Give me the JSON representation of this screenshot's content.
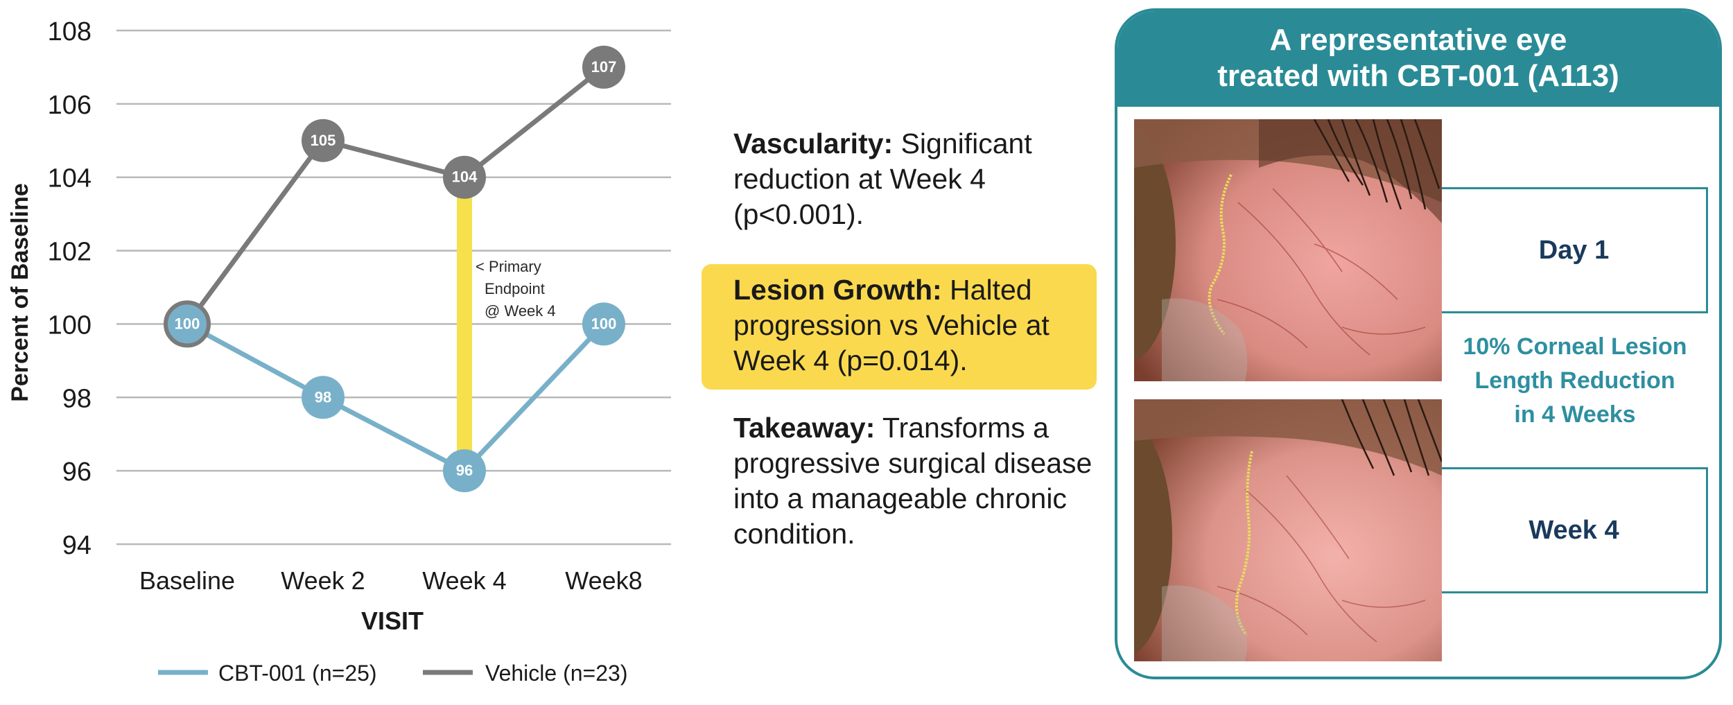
{
  "chart_data": {
    "type": "line",
    "ylabel": "Percent of Baseline",
    "xlabel": "VISIT",
    "categories": [
      "Baseline",
      "Week 2",
      "Week 4",
      "Week8"
    ],
    "ylim": [
      94,
      108
    ],
    "yticks": [
      "94",
      "96",
      "98",
      "100",
      "102",
      "104",
      "106",
      "108"
    ],
    "grid": true,
    "legend_position": "bottom",
    "series": [
      {
        "name": "CBT-001 (n=25)",
        "values": [
          100,
          98,
          96,
          100
        ],
        "labels": [
          "100",
          "98",
          "96",
          "100"
        ],
        "color": "#78b0c9"
      },
      {
        "name": "Vehicle (n=23)",
        "values": [
          100,
          105,
          104,
          107
        ],
        "labels": [
          "100",
          "105",
          "104",
          "107"
        ],
        "color": "#7a7a7a"
      }
    ],
    "endpoint_bar": {
      "category": "Week 4",
      "from": 96,
      "to": 104,
      "color": "#f6e04b"
    },
    "annotation": [
      "< Primary",
      "Endpoint",
      "@ Week 4"
    ]
  },
  "bullets": {
    "vascularity": {
      "title": "Vascularity:",
      "text": " Significant reduction at Week 4 (p<0.001)."
    },
    "lesion": {
      "title": "Lesion Growth:",
      "text": " Halted progression vs Vehicle at Week 4 (p=0.014)."
    },
    "takeaway": {
      "title": "Takeaway:",
      "text": " Transforms a progressive surgical disease into a manageable chronic condition."
    }
  },
  "highlight_color": "#fbd94f",
  "panel": {
    "title_line1": "A representative eye",
    "title_line2": "treated with CBT-001 (A113)",
    "color": "#2a8b96",
    "day1_label": "Day 1",
    "week4_label": "Week 4",
    "reduction_lines": [
      "10% Corneal Lesion",
      "Length Reduction",
      "in 4 Weeks"
    ]
  }
}
